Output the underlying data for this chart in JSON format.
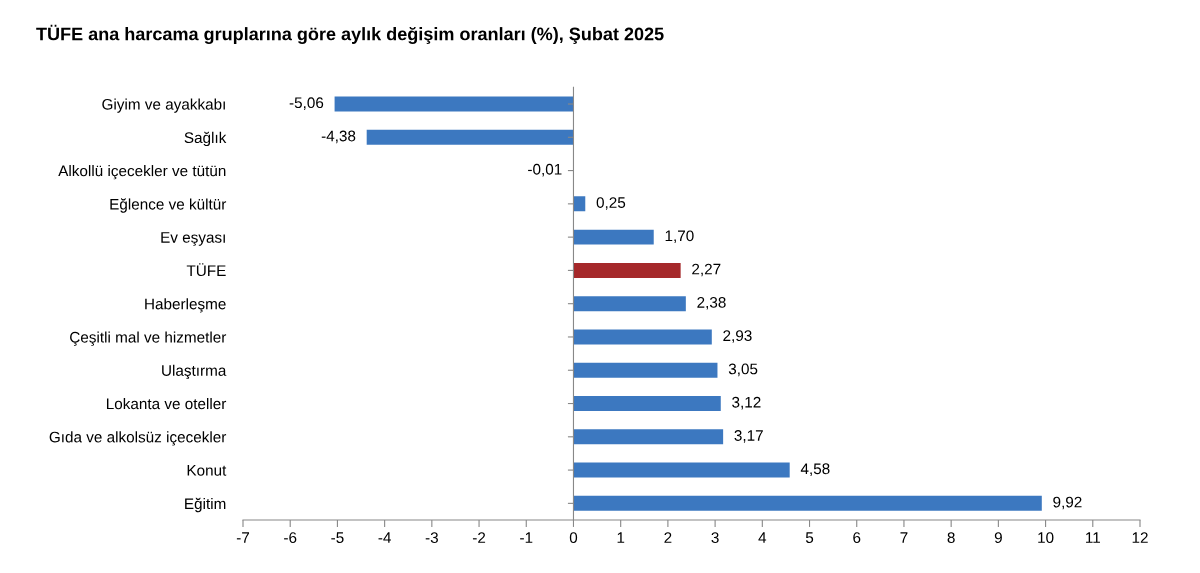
{
  "chart_data": {
    "type": "bar",
    "orientation": "horizontal",
    "title": "TÜFE ana harcama gruplarına göre aylık değişim oranları (%), Şubat 2025",
    "categories": [
      "Giyim ve ayakkabı",
      "Sağlık",
      "Alkollü içecekler ve tütün",
      "Eğlence ve kültür",
      "Ev eşyası",
      "TÜFE",
      "Haberleşme",
      "Çeşitli mal ve hizmetler",
      "Ulaştırma",
      "Lokanta ve oteller",
      "Gıda ve alkolsüz içecekler",
      "Konut",
      "Eğitim"
    ],
    "values": [
      -5.06,
      -4.38,
      -0.01,
      0.25,
      1.7,
      2.27,
      2.38,
      2.93,
      3.05,
      3.12,
      3.17,
      4.58,
      9.92
    ],
    "value_labels": [
      "-5,06",
      "-4,38",
      "-0,01",
      "0,25",
      "1,70",
      "2,27",
      "2,38",
      "2,93",
      "3,05",
      "3,12",
      "3,17",
      "4,58",
      "9,92"
    ],
    "colors": [
      "#3c78c0",
      "#3c78c0",
      "#3c78c0",
      "#3c78c0",
      "#3c78c0",
      "#a5282a",
      "#3c78c0",
      "#3c78c0",
      "#3c78c0",
      "#3c78c0",
      "#3c78c0",
      "#3c78c0",
      "#3c78c0"
    ],
    "xlim": [
      -7,
      12
    ],
    "xticks": [
      -7,
      -6,
      -5,
      -4,
      -3,
      -2,
      -1,
      0,
      1,
      2,
      3,
      4,
      5,
      6,
      7,
      8,
      9,
      10,
      11,
      12
    ],
    "legend": false
  }
}
